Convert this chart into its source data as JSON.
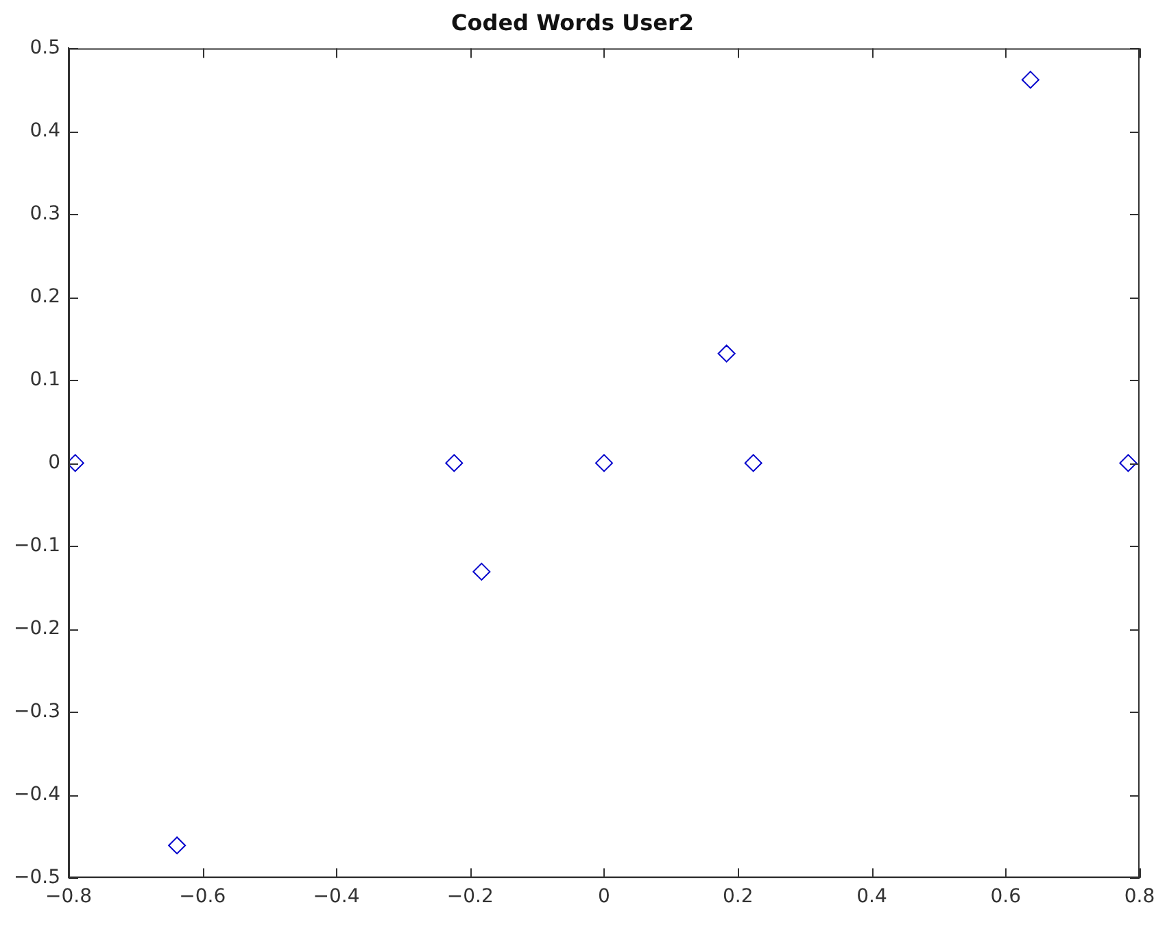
{
  "chart_data": {
    "type": "scatter",
    "title": "Coded Words User2",
    "x": [
      -0.79,
      -0.638,
      -0.224,
      -0.183,
      0,
      0.183,
      0.223,
      0.637,
      0.783
    ],
    "values": [
      0,
      -0.461,
      0,
      -0.131,
      0,
      0.132,
      0,
      0.462,
      0
    ],
    "color": "#0000cc",
    "marker": "diamond",
    "xlim": [
      -0.8,
      0.8
    ],
    "xticks": [
      -0.8,
      -0.6,
      -0.4,
      -0.2,
      0,
      0.2,
      0.4,
      0.6,
      0.8
    ],
    "ylim": [
      -0.5,
      0.5
    ],
    "yticks": [
      -0.5,
      -0.4,
      -0.3,
      -0.2,
      -0.1,
      0,
      0.1,
      0.2,
      0.3,
      0.4,
      0.5
    ]
  }
}
